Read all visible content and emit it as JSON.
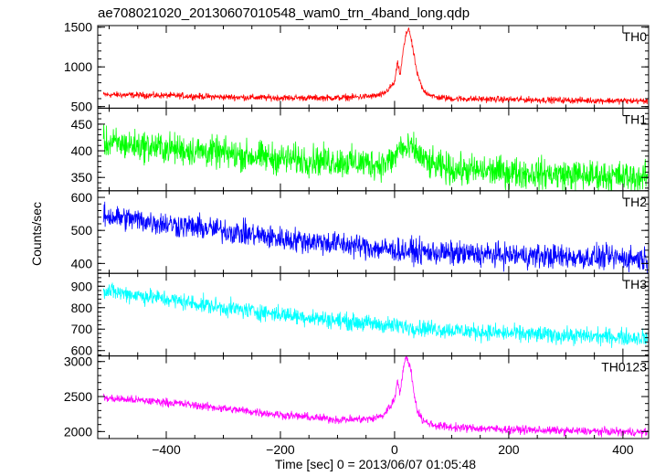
{
  "chart_data": {
    "type": "line",
    "title": "ae708021020_20130607010548_wam0_trn_4band_long.qdp",
    "xlabel": "Time [sec] 0 = 2013/06/07 01:05:48",
    "ylabel": "Counts/sec",
    "xlim": [
      -520,
      445
    ],
    "xticks": [
      -400,
      -200,
      0,
      200,
      400
    ],
    "grid": false,
    "panels": [
      {
        "name": "TH0",
        "color": "#ff0000",
        "ylim": [
          480,
          1520
        ],
        "yticks": [
          500,
          1000,
          1500
        ],
        "series": {
          "x": [
            -510,
            -400,
            -300,
            -200,
            -100,
            -40,
            -20,
            0,
            5,
            10,
            15,
            20,
            25,
            30,
            35,
            40,
            50,
            70,
            100,
            200,
            300,
            440
          ],
          "y": [
            650,
            640,
            620,
            610,
            610,
            630,
            650,
            800,
            1050,
            900,
            1200,
            1400,
            1500,
            1300,
            1100,
            900,
            700,
            620,
            600,
            590,
            580,
            570
          ]
        },
        "noise": 30
      },
      {
        "name": "TH1",
        "color": "#00ff00",
        "ylim": [
          325,
          480
        ],
        "yticks": [
          350,
          400,
          450
        ],
        "series": {
          "x": [
            -510,
            -400,
            -300,
            -200,
            -100,
            -20,
            0,
            10,
            20,
            30,
            40,
            60,
            100,
            200,
            300,
            440
          ],
          "y": [
            415,
            405,
            395,
            385,
            380,
            375,
            385,
            410,
            400,
            405,
            395,
            375,
            365,
            360,
            355,
            350
          ]
        },
        "noise": 22
      },
      {
        "name": "TH2",
        "color": "#0000ff",
        "ylim": [
          370,
          620
        ],
        "yticks": [
          400,
          500,
          600
        ],
        "series": {
          "x": [
            -510,
            -400,
            -300,
            -200,
            -100,
            0,
            100,
            200,
            300,
            440
          ],
          "y": [
            545,
            520,
            500,
            475,
            460,
            440,
            430,
            425,
            420,
            415
          ]
        },
        "noise": 28
      },
      {
        "name": "TH3",
        "color": "#00ffff",
        "ylim": [
          575,
          960
        ],
        "yticks": [
          600,
          700,
          800,
          900
        ],
        "series": {
          "x": [
            -510,
            -400,
            -300,
            -200,
            -100,
            0,
            100,
            200,
            300,
            440
          ],
          "y": [
            880,
            840,
            800,
            770,
            740,
            715,
            695,
            680,
            670,
            660
          ]
        },
        "noise": 30
      },
      {
        "name": "TH0123",
        "color": "#ff00ff",
        "ylim": [
          1900,
          3080
        ],
        "yticks": [
          2000,
          2500,
          3000
        ],
        "series": {
          "x": [
            -510,
            -400,
            -300,
            -200,
            -100,
            -40,
            -20,
            0,
            5,
            10,
            15,
            20,
            25,
            30,
            35,
            40,
            50,
            70,
            100,
            200,
            300,
            440
          ],
          "y": [
            2480,
            2420,
            2330,
            2240,
            2170,
            2180,
            2230,
            2450,
            2750,
            2550,
            2900,
            3050,
            3000,
            2800,
            2500,
            2300,
            2150,
            2090,
            2060,
            2030,
            2010,
            1990
          ]
        },
        "noise": 45
      }
    ]
  }
}
